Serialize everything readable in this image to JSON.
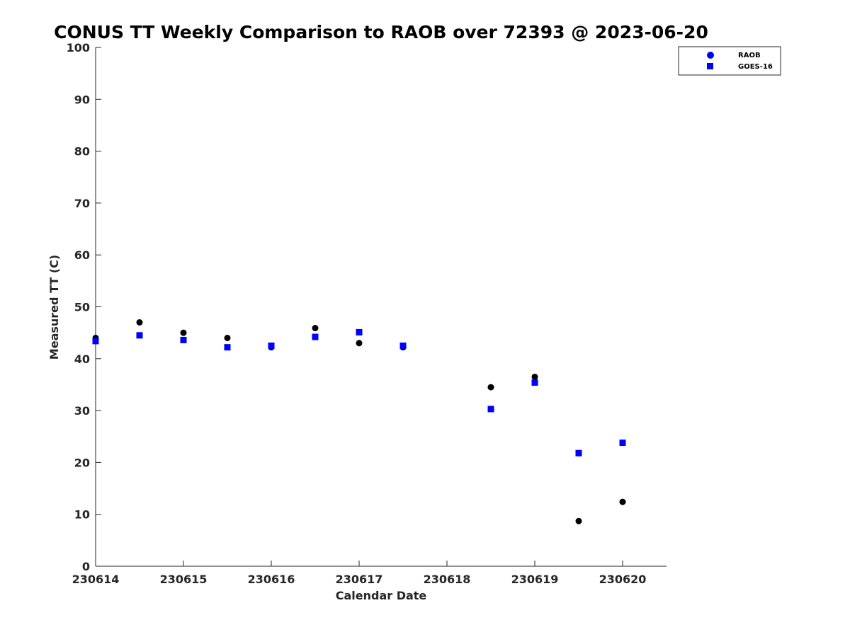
{
  "chart_data": {
    "type": "scatter",
    "title": "CONUS TT Weekly Comparison to RAOB over 72393 @ 2023-06-20",
    "xlabel": "Calendar Date",
    "ylabel": "Measured TT (C)",
    "xlim": [
      0,
      6.5
    ],
    "ylim": [
      0,
      100
    ],
    "x_ticks": [
      0,
      1,
      2,
      3,
      4,
      5,
      6
    ],
    "x_tick_labels": [
      "230614",
      "230615",
      "230616",
      "230617",
      "230618",
      "230619",
      "230620"
    ],
    "y_ticks": [
      0,
      10,
      20,
      30,
      40,
      50,
      60,
      70,
      80,
      90,
      100
    ],
    "grid": false,
    "legend_position": "top-right",
    "series": [
      {
        "name": "RAOB",
        "marker": "circle",
        "color": "#000000",
        "legend_color": "#0000ff",
        "x": [
          0,
          0.5,
          1,
          1.5,
          2,
          2.5,
          3,
          3.5,
          4.5,
          5,
          5.5,
          6
        ],
        "y": [
          44,
          47,
          45,
          44,
          42.2,
          45.9,
          43,
          42.2,
          34.5,
          36.5,
          8.7,
          12.4
        ]
      },
      {
        "name": "GOES-16",
        "marker": "square",
        "color": "#0000ff",
        "legend_color": "#0000ff",
        "x": [
          0,
          0.5,
          1,
          1.5,
          2,
          2.5,
          3,
          3.5,
          4.5,
          5,
          5.5,
          6
        ],
        "y": [
          43.4,
          44.5,
          43.6,
          42.2,
          42.5,
          44.2,
          45.1,
          42.5,
          30.3,
          35.4,
          21.8,
          23.8
        ]
      }
    ]
  }
}
